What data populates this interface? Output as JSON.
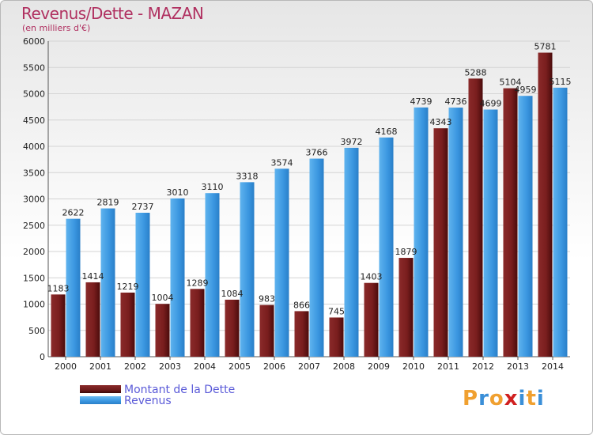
{
  "title": "Revenus/Dette - MAZAN",
  "subtitle": "(en milliers d'€)",
  "colors": {
    "title": "#b03060",
    "debt": "#6e1a1a",
    "revenue": "#3a96e0",
    "legend_text": "#5a5ad8",
    "background": "#ffffff"
  },
  "logo": {
    "letters": [
      "P",
      "r",
      "o",
      "x",
      "i",
      "t",
      "i"
    ],
    "colors": [
      "#f0a030",
      "#3a8fd8",
      "#f0a030",
      "#d02020",
      "#3a8fd8",
      "#f0a030",
      "#3a8fd8"
    ]
  },
  "chart_data": {
    "type": "bar",
    "categories": [
      "2000",
      "2001",
      "2002",
      "2003",
      "2004",
      "2005",
      "2006",
      "2007",
      "2008",
      "2009",
      "2010",
      "2011",
      "2012",
      "2013",
      "2014"
    ],
    "series": [
      {
        "name": "Montant de la Dette",
        "color": "#6e1a1a",
        "values": [
          1183,
          1414,
          1219,
          1004,
          1289,
          1084,
          983,
          866,
          745,
          1403,
          1879,
          4343,
          5288,
          5104,
          5781
        ],
        "labels": [
          "1183",
          "1414",
          "1219",
          "1004",
          "1289",
          "1084",
          "983",
          "866",
          "745",
          "1403",
          "1879",
          "4343",
          "5288",
          "5104",
          "5781"
        ]
      },
      {
        "name": "Revenus",
        "color": "#3a96e0",
        "values": [
          2622,
          2819,
          2737,
          3010,
          3110,
          3318,
          3574,
          3766,
          3972,
          4168,
          4739,
          4736,
          4699,
          4959,
          5115
        ],
        "labels": [
          "2622",
          "2819",
          "2737",
          "3010",
          "3110",
          "3318",
          "3574",
          "3766",
          "3972",
          "4168",
          "4739",
          "4736",
          "4699",
          "4959",
          "5115"
        ]
      }
    ],
    "ylim": [
      0,
      6000
    ],
    "yticks": [
      0,
      500,
      1000,
      1500,
      2000,
      2500,
      3000,
      3500,
      4000,
      4500,
      5000,
      5500,
      6000
    ],
    "grid": true,
    "legend_position": "bottom-left"
  }
}
